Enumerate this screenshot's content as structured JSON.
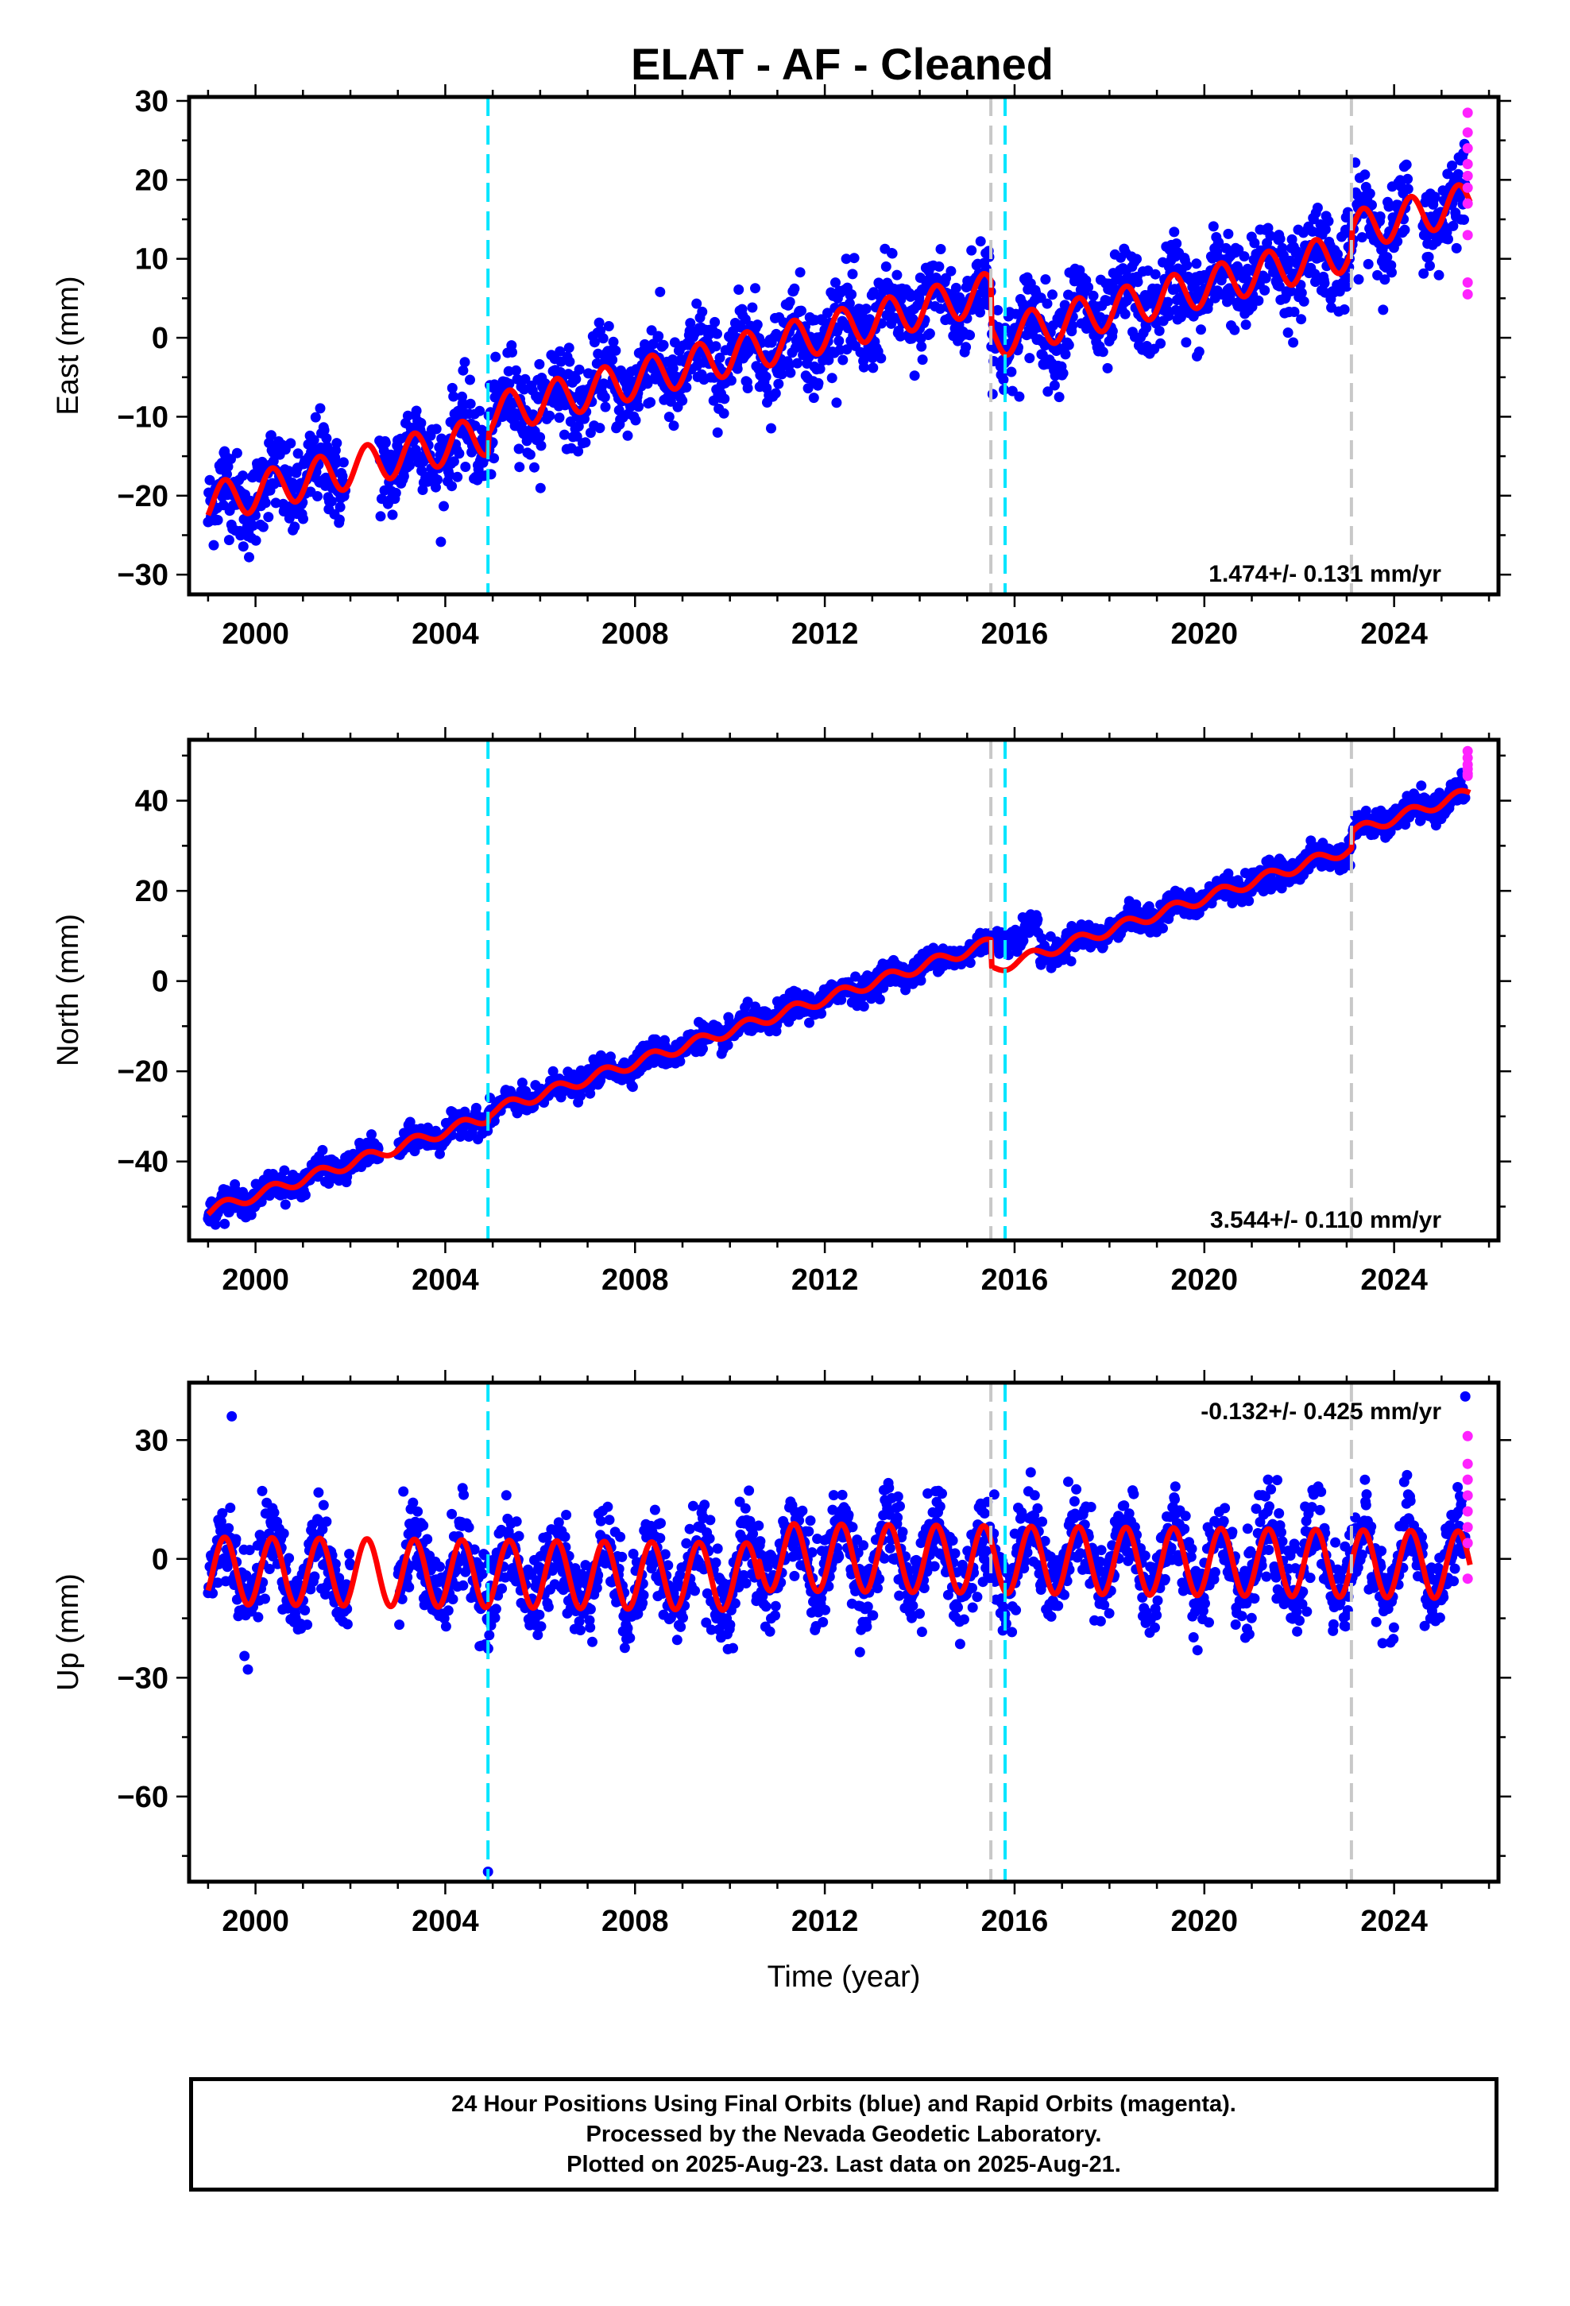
{
  "title": "ELAT  - AF - Cleaned",
  "colors": {
    "final_orbits": "#0000ff",
    "rapid_orbits": "#ff22ff",
    "model": "#ff0000",
    "equipment_change": "#c8c8c8",
    "earthquake": "#00e5ff"
  },
  "chart_data": [
    {
      "type": "scatter",
      "panel": "east",
      "ylabel": "East (mm)",
      "xlabel": "",
      "xlim": [
        1998.6,
        2026.2
      ],
      "ylim": [
        -32.5,
        30.5
      ],
      "xticks": [
        2000,
        2004,
        2008,
        2012,
        2016,
        2020,
        2024
      ],
      "xtick_labels": [
        "2000",
        "2004",
        "2008",
        "2012",
        "2016",
        "2020",
        "2024"
      ],
      "yticks": [
        -30,
        -20,
        -10,
        0,
        10,
        20,
        30
      ],
      "ytick_labels": [
        "−30",
        "−20",
        "−10",
        "0",
        "10",
        "20",
        "30"
      ],
      "rate_label": "1.474+/- 0.131 mm/yr",
      "rate_position": "bottom-right",
      "grid": false,
      "vlines": [
        {
          "x": 2004.9,
          "kind": "earthquake"
        },
        {
          "x": 2015.5,
          "kind": "equipment_change"
        },
        {
          "x": 2015.8,
          "kind": "earthquake"
        },
        {
          "x": 2023.1,
          "kind": "equipment_change"
        }
      ],
      "model": {
        "start_x": 1999.0,
        "start_y": -21.0,
        "annual_amplitude": 2.5,
        "breaks": [
          {
            "x": 2004.9,
            "offset": 2.5
          },
          {
            "x": 2015.5,
            "offset": -6.0
          },
          {
            "x": 2023.1,
            "offset": 2.5
          }
        ],
        "end_x": 2025.6
      },
      "series": [
        {
          "name": "Final Orbits (blue)",
          "kind": "final",
          "x_range": [
            1999.0,
            2025.5
          ],
          "scatter": 2.8,
          "gaps": [
            [
              2001.9,
              2002.6
            ],
            [
              2024.3,
              2024.6
            ]
          ]
        },
        {
          "name": "Rapid Orbits (magenta)",
          "kind": "rapid",
          "points": [
            [
              2025.55,
              28.5
            ],
            [
              2025.55,
              26.0
            ],
            [
              2025.55,
              24.0
            ],
            [
              2025.55,
              22.0
            ],
            [
              2025.55,
              20.5
            ],
            [
              2025.55,
              19.0
            ],
            [
              2025.55,
              17.0
            ],
            [
              2025.55,
              13.0
            ],
            [
              2025.55,
              7.0
            ],
            [
              2025.55,
              5.5
            ]
          ]
        }
      ]
    },
    {
      "type": "scatter",
      "panel": "north",
      "ylabel": "North (mm)",
      "xlabel": "",
      "xlim": [
        1998.6,
        2026.2
      ],
      "ylim": [
        -57.5,
        53.5
      ],
      "xticks": [
        2000,
        2004,
        2008,
        2012,
        2016,
        2020,
        2024
      ],
      "xtick_labels": [
        "2000",
        "2004",
        "2008",
        "2012",
        "2016",
        "2020",
        "2024"
      ],
      "yticks": [
        -40,
        -20,
        0,
        20,
        40
      ],
      "ytick_labels": [
        "−40",
        "−20",
        "0",
        "20",
        "40"
      ],
      "rate_label": "3.544+/- 0.110 mm/yr",
      "rate_position": "bottom-right",
      "grid": false,
      "vlines": [
        {
          "x": 2004.9,
          "kind": "earthquake"
        },
        {
          "x": 2015.5,
          "kind": "equipment_change"
        },
        {
          "x": 2015.8,
          "kind": "earthquake"
        },
        {
          "x": 2023.1,
          "kind": "equipment_change"
        }
      ],
      "model": {
        "start_x": 1999.0,
        "start_y": -51.0,
        "annual_amplitude": 1.2,
        "breaks": [
          {
            "x": 2004.9,
            "offset": 1.0
          },
          {
            "x": 2015.5,
            "offset": -6.0
          },
          {
            "x": 2023.1,
            "offset": 3.5
          }
        ],
        "end_x": 2025.6
      },
      "series": [
        {
          "name": "Final Orbits (blue)",
          "kind": "final",
          "x_range": [
            1999.0,
            2025.5
          ],
          "scatter": 1.4,
          "gaps": [
            [
              2002.6,
              2003.0
            ]
          ]
        },
        {
          "name": "Rapid Orbits (magenta)",
          "kind": "rapid",
          "points": [
            [
              2025.55,
              51.0
            ],
            [
              2025.55,
              49.5
            ],
            [
              2025.55,
              48.0
            ],
            [
              2025.55,
              47.0
            ],
            [
              2025.55,
              46.0
            ],
            [
              2025.55,
              45.5
            ]
          ]
        }
      ]
    },
    {
      "type": "scatter",
      "panel": "up",
      "ylabel": "Up (mm)",
      "xlabel": "Time (year)",
      "xlim": [
        1998.6,
        2026.2
      ],
      "ylim": [
        -81.5,
        44.5
      ],
      "xticks": [
        2000,
        2004,
        2008,
        2012,
        2016,
        2020,
        2024
      ],
      "xtick_labels": [
        "2000",
        "2004",
        "2008",
        "2012",
        "2016",
        "2020",
        "2024"
      ],
      "yticks": [
        -60,
        -30,
        0,
        30
      ],
      "ytick_labels": [
        "−60",
        "−30",
        "0",
        "30"
      ],
      "rate_label": "-0.132+/- 0.425 mm/yr",
      "rate_position": "top-right",
      "grid": false,
      "vlines": [
        {
          "x": 2004.9,
          "kind": "earthquake"
        },
        {
          "x": 2015.5,
          "kind": "equipment_change"
        },
        {
          "x": 2015.8,
          "kind": "earthquake"
        },
        {
          "x": 2023.1,
          "kind": "equipment_change"
        }
      ],
      "model": {
        "start_x": 1999.0,
        "start_y": -3.0,
        "annual_amplitude": 8.5,
        "breaks": [
          {
            "x": 2010.6,
            "offset": 5.0
          }
        ],
        "end_x": 2025.6
      },
      "series": [
        {
          "name": "Final Orbits (blue)",
          "kind": "final",
          "x_range": [
            1999.0,
            2025.5
          ],
          "scatter": 5.5,
          "gaps": [
            [
              2002.0,
              2003.0
            ]
          ],
          "outliers": [
            [
              2004.9,
              -79.0
            ],
            [
              2025.5,
              41.0
            ],
            [
              1999.5,
              36.0
            ]
          ]
        },
        {
          "name": "Rapid Orbits (magenta)",
          "kind": "rapid",
          "points": [
            [
              2025.55,
              31.0
            ],
            [
              2025.55,
              24.0
            ],
            [
              2025.55,
              20.0
            ],
            [
              2025.55,
              16.0
            ],
            [
              2025.55,
              12.0
            ],
            [
              2025.55,
              8.0
            ],
            [
              2025.55,
              4.0
            ],
            [
              2025.55,
              -5.0
            ]
          ]
        }
      ]
    }
  ],
  "footer": {
    "line1": "24 Hour Positions Using Final Orbits (blue) and Rapid Orbits (magenta).",
    "line2": "Processed by the Nevada Geodetic Laboratory.",
    "line3": "Plotted on 2025-Aug-23. Last data on 2025-Aug-21."
  }
}
